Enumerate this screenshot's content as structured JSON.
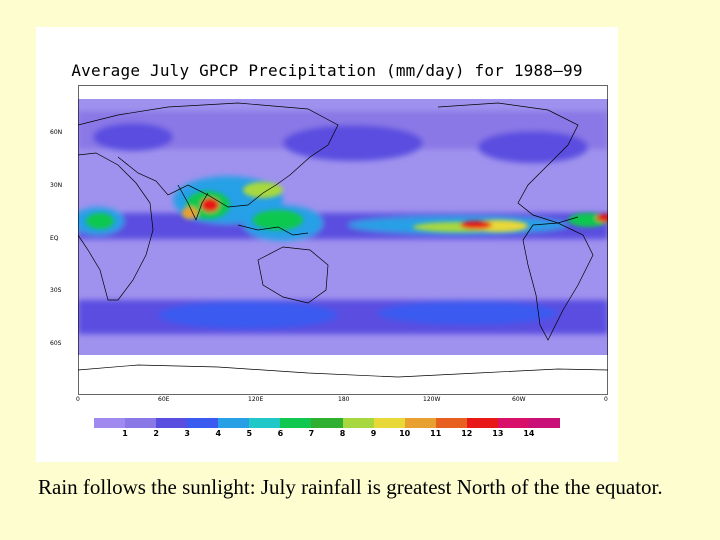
{
  "title": "Average July GPCP Precipitation (mm/day) for 1988–99",
  "caption": "Rain follows the sunlight:  July rainfall is greatest North of the the equator.",
  "latitude_labels": [
    "60N",
    "30N",
    "EQ",
    "30S",
    "60S"
  ],
  "longitude_labels": [
    "0",
    "60E",
    "120E",
    "180",
    "120W",
    "60W",
    "0"
  ],
  "colorbar": {
    "labels": [
      "1",
      "2",
      "3",
      "4",
      "5",
      "6",
      "7",
      "8",
      "9",
      "10",
      "11",
      "12",
      "13",
      "14"
    ],
    "colors": [
      "#a08af0",
      "#8a78e6",
      "#5a4ee0",
      "#3a5af0",
      "#28a0e6",
      "#20c8c8",
      "#10c850",
      "#30b030",
      "#a8d840",
      "#e8d838",
      "#e8a030",
      "#e86020",
      "#e81818",
      "#d8106a",
      "#c81078"
    ]
  },
  "map_colors": {
    "land_outline": "#000000",
    "dry": "#ffffff",
    "low": "#9f92ee"
  }
}
